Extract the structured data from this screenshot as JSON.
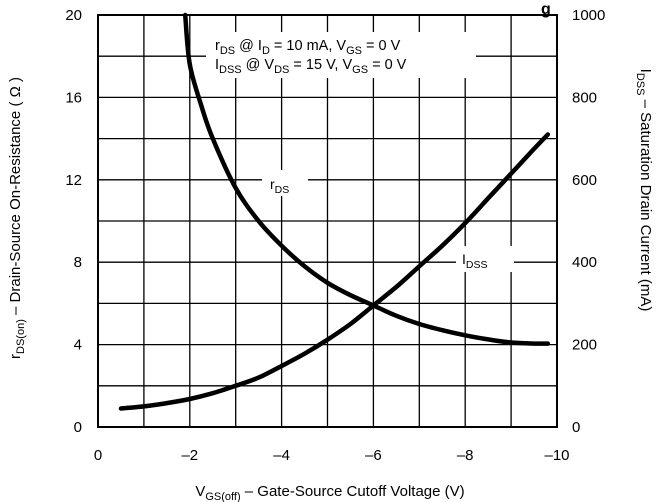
{
  "chart_data": {
    "type": "line",
    "title_fragment": "g",
    "annotation": {
      "line1": {
        "rds": "r",
        "rds_sub": "DS",
        "at": " @ I",
        "id_sub": "D",
        "rest": " = 10 mA, V",
        "vgs_sub": "GS",
        "tail": " = 0 V"
      },
      "line2": {
        "idss": "I",
        "idss_sub": "DSS",
        "at": " @ V",
        "vds_sub": "DS",
        "rest": " = 15 V, V",
        "vgs_sub": "GS",
        "tail": " = 0 V"
      }
    },
    "xlabel": {
      "v": "V",
      "sub": "GS(off)",
      "rest": " – Gate-Source Cutoff Voltage (V)"
    },
    "ylabel_left": {
      "r": "r",
      "sub": "DS(on)",
      "rest": " – Drain-Source On-Resistance ( Ω )"
    },
    "ylabel_right": {
      "i": "I",
      "sub": "DSS",
      "rest": " – Saturation Drain Current (mA)"
    },
    "x_ticks": [
      "0",
      "–2",
      "–4",
      "–6",
      "–8",
      "–10"
    ],
    "y_left_ticks": [
      "0",
      "4",
      "8",
      "12",
      "16",
      "20"
    ],
    "y_right_ticks": [
      "0",
      "200",
      "400",
      "600",
      "800",
      "1000"
    ],
    "xlim": [
      0,
      -10
    ],
    "ylim_left": [
      0,
      20
    ],
    "ylim_right": [
      0,
      1000
    ],
    "grid": true,
    "series": [
      {
        "name": "rDS",
        "label": {
          "main": "r",
          "sub": "DS"
        },
        "axis": "left",
        "x": [
          -1.9,
          -2.0,
          -2.25,
          -2.5,
          -3.0,
          -3.5,
          -4.0,
          -4.5,
          -5.0,
          -5.5,
          -6.0,
          -6.5,
          -7.0,
          -7.5,
          -8.0,
          -8.5,
          -9.0,
          -9.5,
          -9.8
        ],
        "y": [
          20.0,
          17.6,
          15.6,
          14.0,
          11.6,
          10.0,
          8.8,
          7.8,
          7.0,
          6.4,
          5.9,
          5.4,
          5.0,
          4.7,
          4.45,
          4.25,
          4.1,
          4.05,
          4.05
        ]
      },
      {
        "name": "IDSS",
        "label": {
          "main": "I",
          "sub": "DSS"
        },
        "axis": "right",
        "x": [
          -0.5,
          -1.0,
          -1.5,
          -2.0,
          -2.5,
          -3.0,
          -3.5,
          -4.0,
          -4.5,
          -5.0,
          -5.5,
          -6.0,
          -6.5,
          -7.0,
          -7.5,
          -8.0,
          -8.5,
          -9.0,
          -9.5,
          -9.8
        ],
        "y": [
          45,
          50,
          58,
          68,
          82,
          100,
          120,
          148,
          178,
          212,
          250,
          295,
          340,
          390,
          440,
          495,
          555,
          615,
          675,
          710
        ]
      }
    ]
  }
}
